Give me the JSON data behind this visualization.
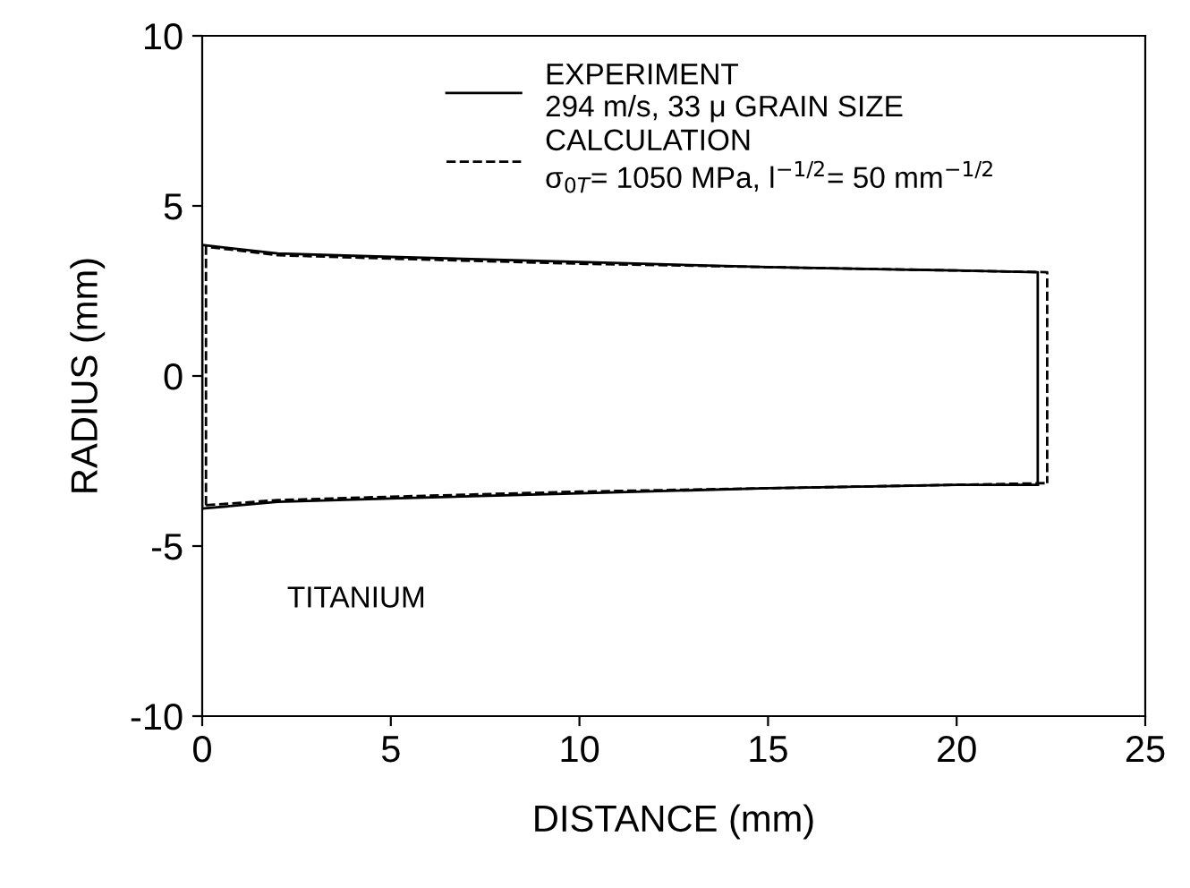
{
  "chart_data": {
    "type": "line",
    "xlabel": "DISTANCE (mm)",
    "ylabel": "RADIUS (mm)",
    "xlim": [
      0,
      25
    ],
    "xticks": [
      0,
      5,
      10,
      15,
      20,
      25
    ],
    "ylim": [
      -10,
      10
    ],
    "yticks": [
      -10,
      -5,
      0,
      5,
      10
    ],
    "series": [
      {
        "name": "EXPERIMENT\n294 m/s, 33 μ GRAIN SIZE",
        "color": "#000000",
        "line_style": "solid",
        "x": [
          0,
          0,
          2,
          5,
          10,
          15,
          20,
          22.15,
          22.15
        ],
        "values": [
          -3.9,
          3.85,
          3.6,
          3.5,
          3.35,
          3.2,
          3.1,
          3.05,
          -3.2
        ]
      },
      {
        "color": "#000000",
        "line_style": "solid",
        "x": [
          0,
          2,
          5,
          10,
          15,
          20,
          22.15
        ],
        "values": [
          -3.9,
          -3.7,
          -3.6,
          -3.45,
          -3.3,
          -3.2,
          -3.2
        ]
      },
      {
        "name": "CALCULATION\nσ$_{0T}$= 1050 MPa, l$^{−1/2}$= 50 mm$^{−1/2}$",
        "color": "#000000",
        "line_style": "dashed",
        "x": [
          0.1,
          0.1,
          2,
          5,
          10,
          15,
          20,
          22.4,
          22.4
        ],
        "values": [
          -3.8,
          3.8,
          3.55,
          3.45,
          3.3,
          3.2,
          3.1,
          3.05,
          -3.15
        ]
      },
      {
        "color": "#000000",
        "line_style": "dashed",
        "x": [
          0.1,
          2,
          5,
          10,
          15,
          20,
          22.4
        ],
        "values": [
          -3.8,
          -3.65,
          -3.55,
          -3.4,
          -3.3,
          -3.2,
          -3.15
        ]
      }
    ],
    "legend": "top",
    "annotations": [
      "TITANIUM"
    ]
  }
}
